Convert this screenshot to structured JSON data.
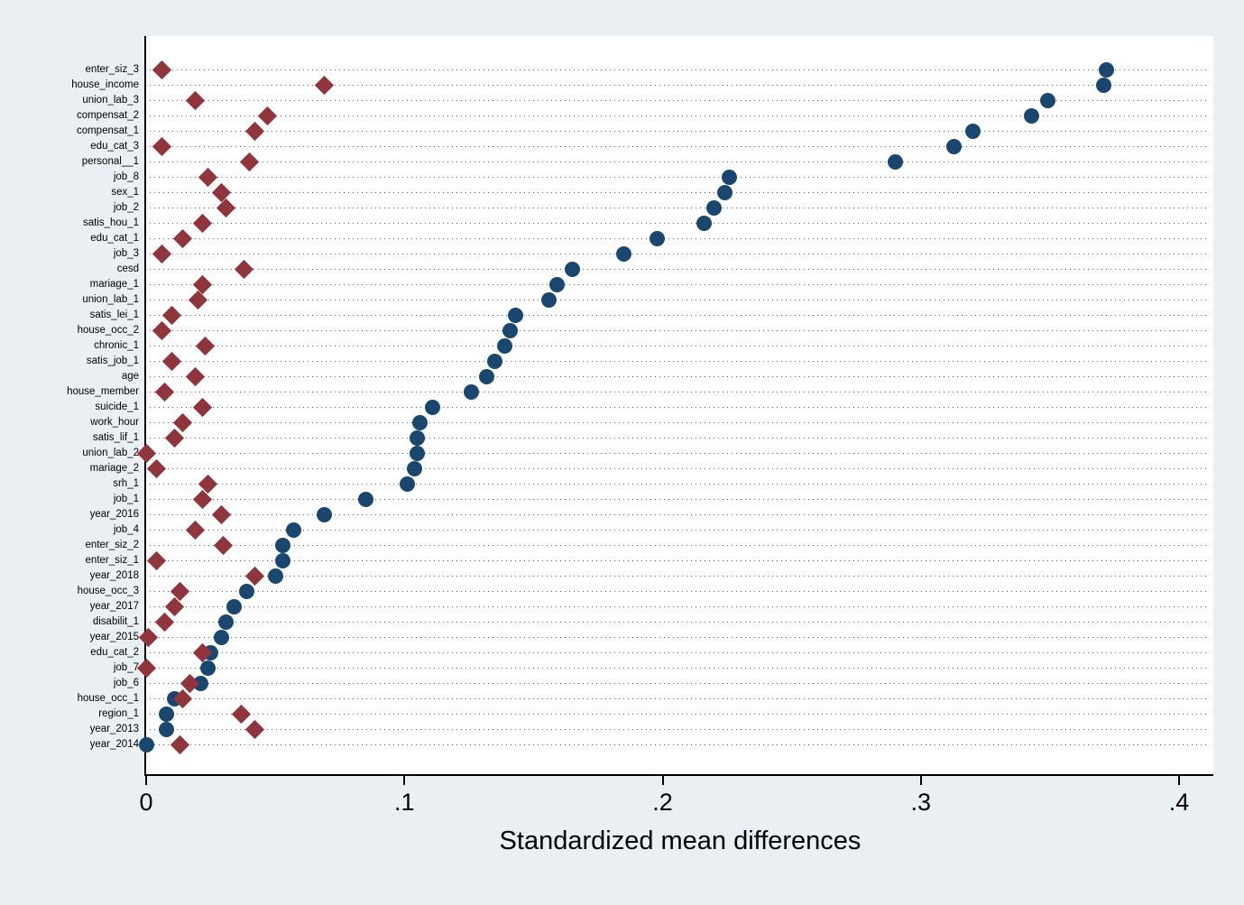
{
  "chart_data": {
    "type": "scatter",
    "title": "",
    "xlabel": "Standardized mean differences",
    "ylabel": "",
    "xlim": [
      -0.012,
      0.413
    ],
    "x_ticks": [
      "0",
      ".1",
      ".2",
      ".3",
      ".4"
    ],
    "x_tick_values": [
      0,
      0.1,
      0.2,
      0.3,
      0.4
    ],
    "grid": "horizontal-dotted",
    "legend": "none",
    "categories": [
      "enter_siz_3",
      "house_income",
      "union_lab_3",
      "compensat_2",
      "compensat_1",
      "edu_cat_3",
      "personal__1",
      "job_8",
      "sex_1",
      "job_2",
      "satis_hou_1",
      "edu_cat_1",
      "job_3",
      "cesd",
      "mariage_1",
      "union_lab_1",
      "satis_lei_1",
      "house_occ_2",
      "chronic_1",
      "satis_job_1",
      "age",
      "house_member",
      "suicide_1",
      "work_hour",
      "satis_lif_1",
      "union_lab_2",
      "mariage_2",
      "srh_1",
      "job_1",
      "year_2016",
      "job_4",
      "enter_siz_2",
      "enter_siz_1",
      "year_2018",
      "house_occ_3",
      "year_2017",
      "disabilit_1",
      "year_2015",
      "edu_cat_2",
      "job_7",
      "job_6",
      "house_occ_1",
      "region_1",
      "year_2013",
      "year_2014"
    ],
    "series": [
      {
        "name": "navy-circles",
        "marker": "circle",
        "color": "#1a476f",
        "values": [
          0.372,
          0.371,
          0.349,
          0.343,
          0.32,
          0.313,
          0.29,
          0.226,
          0.224,
          0.22,
          0.216,
          0.198,
          0.185,
          0.165,
          0.159,
          0.156,
          0.143,
          0.141,
          0.139,
          0.135,
          0.132,
          0.126,
          0.111,
          0.106,
          0.105,
          0.105,
          0.104,
          0.101,
          0.085,
          0.069,
          0.057,
          0.053,
          0.053,
          0.05,
          0.039,
          0.034,
          0.031,
          0.029,
          0.025,
          0.024,
          0.021,
          0.011,
          0.008,
          0.008,
          0.0
        ]
      },
      {
        "name": "maroon-diamonds",
        "marker": "diamond",
        "color": "#90353b",
        "values": [
          0.006,
          0.069,
          0.019,
          0.047,
          0.042,
          0.006,
          0.04,
          0.024,
          0.029,
          0.031,
          0.022,
          0.014,
          0.006,
          0.038,
          0.022,
          0.02,
          0.01,
          0.006,
          0.023,
          0.01,
          0.019,
          0.007,
          0.022,
          0.014,
          0.011,
          0.0,
          0.004,
          0.024,
          0.022,
          0.029,
          0.019,
          0.03,
          0.004,
          0.042,
          0.013,
          0.011,
          0.007,
          0.001,
          0.022,
          0.0,
          0.017,
          0.014,
          0.037,
          0.042,
          0.013
        ]
      }
    ]
  },
  "colors": {
    "background": "#e9eff2",
    "plot_background": "#ffffff",
    "axis": "#000000",
    "gridline": "#565e67",
    "text": "#000000",
    "circle_series": "#1a476f",
    "diamond_series": "#90353b"
  }
}
